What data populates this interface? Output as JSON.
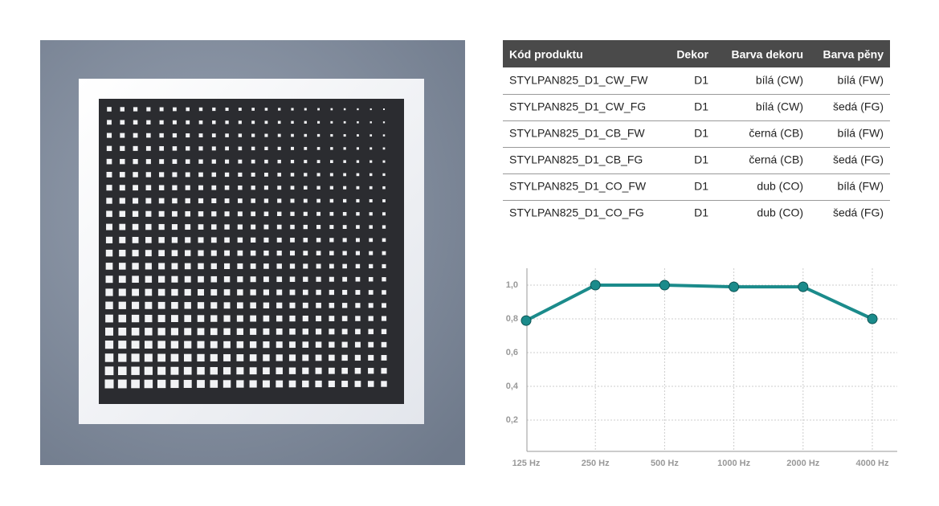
{
  "table": {
    "header": [
      "Kód produktu",
      "Dekor",
      "Barva  dekoru",
      "Barva pěny"
    ],
    "rows": [
      [
        "STYLPAN825_D1_CW_FW",
        "D1",
        "bílá (CW)",
        "bílá (FW)"
      ],
      [
        "STYLPAN825_D1_CW_FG",
        "D1",
        "bílá (CW)",
        "šedá (FG)"
      ],
      [
        "STYLPAN825_D1_CB_FW",
        "D1",
        "černá (CB)",
        "bílá (FW)"
      ],
      [
        "STYLPAN825_D1_CB_FG",
        "D1",
        "černá (CB)",
        "šedá (FG)"
      ],
      [
        "STYLPAN825_D1_CO_FW",
        "D1",
        "dub (CO)",
        "bílá (FW)"
      ],
      [
        "STYLPAN825_D1_CO_FG",
        "D1",
        "dub (CO)",
        "šedá (FG)"
      ]
    ]
  },
  "chart_data": {
    "type": "line",
    "categories": [
      "125 Hz",
      "250 Hz",
      "500 Hz",
      "1000 Hz",
      "2000 Hz",
      "4000 Hz"
    ],
    "values": [
      0.79,
      1.0,
      1.0,
      0.99,
      0.99,
      0.8
    ],
    "color": "#1b8b8b",
    "ylim": [
      0,
      1.1
    ],
    "yticks": [
      {
        "value": 0.2,
        "label": "0,2"
      },
      {
        "value": 0.4,
        "label": "0,4"
      },
      {
        "value": 0.6,
        "label": "0,6"
      },
      {
        "value": 0.8,
        "label": "0,8"
      },
      {
        "value": 1.0,
        "label": "1,0"
      }
    ],
    "grid": true
  }
}
